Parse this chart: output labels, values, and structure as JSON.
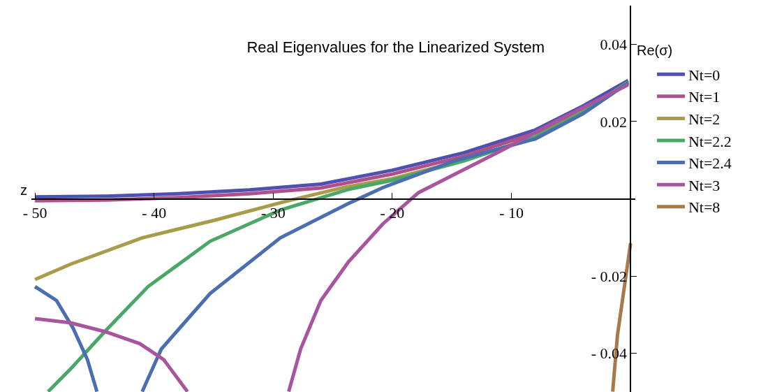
{
  "chart_data": {
    "type": "line",
    "title": "Real Eigenvalues for the Linearized System",
    "xlabel": "z",
    "ylabel": "Re(σ)",
    "xlim": [
      -50.3,
      0.4
    ],
    "ylim": [
      -0.05,
      0.05
    ],
    "xticks": [
      {
        "value": -50,
        "label": "- 50"
      },
      {
        "value": -40,
        "label": "- 40"
      },
      {
        "value": -30,
        "label": "- 30"
      },
      {
        "value": -20,
        "label": "- 20"
      },
      {
        "value": -10,
        "label": "- 10"
      }
    ],
    "yticks": [
      {
        "value": -0.04,
        "label": "- 0.04"
      },
      {
        "value": -0.02,
        "label": "- 0.02"
      },
      0.02,
      0.04
    ],
    "legend": "right",
    "marker": "none",
    "line_style": "solid",
    "series": [
      {
        "name": "Nt=0",
        "color": "#5050b0",
        "x": [
          -50,
          -44,
          -38,
          -32,
          -26,
          -20,
          -14,
          -8,
          -4,
          -0.2
        ],
        "values": [
          0.0005,
          0.0007,
          0.0013,
          0.0023,
          0.0038,
          0.0074,
          0.0119,
          0.0178,
          0.024,
          0.0306
        ]
      },
      {
        "name": "Nt=1",
        "color": "#b0508a",
        "x": [
          -50,
          -44,
          -38,
          -32,
          -26,
          -20,
          -14,
          -8,
          -4,
          -0.2
        ],
        "values": [
          -0.0005,
          -0.0003,
          0.0003,
          0.0013,
          0.0028,
          0.0064,
          0.011,
          0.017,
          0.0232,
          0.0298
        ]
      },
      {
        "name": "Nt=2",
        "color": "#a89c4a",
        "x": [
          -50,
          -47,
          -41,
          -35,
          -29,
          -24,
          -20,
          -14,
          -8,
          -4,
          -0.2
        ],
        "values": [
          -0.0209,
          -0.0169,
          -0.0101,
          -0.0056,
          -0.0007,
          0.003,
          0.0052,
          0.01,
          0.016,
          0.0225,
          0.0302
        ]
      },
      {
        "name": "Nt=2.2",
        "color": "#4aa866",
        "x": [
          -48.9,
          -47,
          -44,
          -40.5,
          -35.3,
          -29.4,
          -23.6,
          -20,
          -14,
          -8,
          -4,
          -0.2
        ],
        "values": [
          -0.0499,
          -0.044,
          -0.0339,
          -0.0227,
          -0.011,
          -0.0029,
          0.0025,
          0.0048,
          0.0098,
          0.016,
          0.0224,
          0.0302
        ]
      },
      {
        "name": "Nt=2.4",
        "color": "#4a6eb0",
        "x": [
          -50,
          -48.2,
          -46.8,
          -45.6,
          -44.8,
          null,
          -41,
          -39.4,
          -35.3,
          -29.4,
          -23.6,
          -20.8,
          -14.9,
          -8,
          -4,
          -0.2
        ],
        "values": [
          -0.0227,
          -0.0263,
          -0.0335,
          -0.0416,
          -0.0499,
          null,
          -0.0499,
          -0.0389,
          -0.0245,
          -0.0101,
          -0.0011,
          0.0029,
          0.0097,
          0.0155,
          0.022,
          0.03
        ]
      },
      {
        "name": "Nt=3",
        "color": "#a855a0",
        "x": [
          -50,
          -47,
          -44.1,
          -41.2,
          -39.2,
          -37.2,
          null,
          -28.7,
          -27.7,
          -26,
          -23.7,
          -20.8,
          -17.8,
          -10.9,
          -6,
          -0.2
        ],
        "values": [
          -0.031,
          -0.0321,
          -0.0344,
          -0.0375,
          -0.0416,
          -0.0499,
          null,
          -0.0499,
          -0.0389,
          -0.0263,
          -0.0164,
          -0.0065,
          0.0016,
          0.0124,
          0.0205,
          0.0295
        ]
      },
      {
        "name": "Nt=8",
        "color": "#a87a4a",
        "x": [
          -1.5,
          -1.1,
          -0.6,
          0
        ],
        "values": [
          -0.0499,
          -0.0353,
          -0.0245,
          -0.0115
        ]
      }
    ]
  }
}
